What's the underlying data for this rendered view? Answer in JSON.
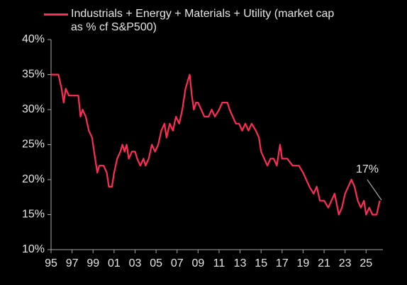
{
  "chart_data": {
    "type": "line",
    "series": [
      {
        "name": "Industrials + Energy + Materials + Utility (market cap as % cf S&P500)",
        "color": "#ff2d55",
        "x": [
          1995.0,
          1995.7,
          1996.0,
          1996.2,
          1996.4,
          1996.7,
          1997.0,
          1997.6,
          1997.8,
          1998.0,
          1998.3,
          1998.6,
          1998.9,
          1999.1,
          1999.4,
          1999.6,
          2000.0,
          2000.3,
          2000.5,
          2000.8,
          2001.0,
          2001.3,
          2001.6,
          2001.8,
          2002.0,
          2002.2,
          2002.4,
          2002.7,
          2003.0,
          2003.2,
          2003.5,
          2003.8,
          2004.0,
          2004.3,
          2004.6,
          2004.9,
          2005.2,
          2005.5,
          2005.8,
          2006.0,
          2006.3,
          2006.6,
          2006.9,
          2007.2,
          2007.5,
          2007.8,
          2008.0,
          2008.2,
          2008.4,
          2008.6,
          2008.8,
          2009.0,
          2009.3,
          2009.6,
          2010.0,
          2010.3,
          2010.6,
          2011.0,
          2011.3,
          2011.8,
          2012.0,
          2012.3,
          2012.6,
          2012.9,
          2013.2,
          2013.5,
          2013.8,
          2014.1,
          2014.5,
          2014.8,
          2015.0,
          2015.3,
          2015.6,
          2015.9,
          2016.2,
          2016.5,
          2016.8,
          2017.0,
          2017.5,
          2018.0,
          2018.6,
          2019.0,
          2019.3,
          2019.6,
          2020.0,
          2020.3,
          2020.6,
          2021.0,
          2021.4,
          2021.7,
          2022.0,
          2022.4,
          2022.7,
          2023.0,
          2023.3,
          2023.6,
          2023.9,
          2024.2,
          2024.5,
          2024.8,
          2025.0,
          2025.3,
          2025.6,
          2026.0,
          2026.3
        ],
        "values": [
          35,
          35,
          33,
          31,
          33,
          32,
          32,
          32,
          29,
          30,
          29,
          27,
          26,
          24,
          21,
          22,
          22,
          21,
          19,
          19,
          21,
          23,
          24,
          25,
          24,
          25,
          23,
          24,
          24,
          23,
          22,
          23,
          22,
          23,
          25,
          24,
          25,
          27,
          28,
          26,
          28,
          27,
          29,
          28,
          30,
          33,
          34,
          35,
          32,
          30,
          31,
          31,
          30,
          29,
          29,
          30,
          29,
          30,
          31,
          31,
          30,
          29,
          28,
          28,
          27,
          28,
          27,
          28,
          27,
          26,
          24,
          23,
          22,
          23,
          23,
          22,
          25,
          23,
          23,
          22,
          22,
          21,
          20,
          19,
          18,
          19,
          17,
          17,
          16,
          17,
          18,
          15,
          16,
          18,
          19,
          20,
          19,
          17,
          16,
          17,
          15,
          16,
          15,
          15,
          17
        ]
      }
    ],
    "xlim": [
      1995,
      2026.6
    ],
    "xticks": [
      {
        "value": 1995,
        "label": "95"
      },
      {
        "value": 1997,
        "label": "97"
      },
      {
        "value": 1999,
        "label": "99"
      },
      {
        "value": 2001,
        "label": "01"
      },
      {
        "value": 2003,
        "label": "03"
      },
      {
        "value": 2005,
        "label": "05"
      },
      {
        "value": 2007,
        "label": "07"
      },
      {
        "value": 2009,
        "label": "09"
      },
      {
        "value": 2011,
        "label": "11"
      },
      {
        "value": 2013,
        "label": "13"
      },
      {
        "value": 2015,
        "label": "15"
      },
      {
        "value": 2017,
        "label": "17"
      },
      {
        "value": 2019,
        "label": "19"
      },
      {
        "value": 2021,
        "label": "21"
      },
      {
        "value": 2023,
        "label": "23"
      },
      {
        "value": 2025,
        "label": "25"
      }
    ],
    "ylim": [
      10,
      40
    ],
    "yticks": [
      {
        "value": 10,
        "label": "10%"
      },
      {
        "value": 15,
        "label": "15%"
      },
      {
        "value": 20,
        "label": "20%"
      },
      {
        "value": 25,
        "label": "25%"
      },
      {
        "value": 30,
        "label": "30%"
      },
      {
        "value": 35,
        "label": "35%"
      },
      {
        "value": 40,
        "label": "40%"
      }
    ],
    "annotation": "17%"
  }
}
